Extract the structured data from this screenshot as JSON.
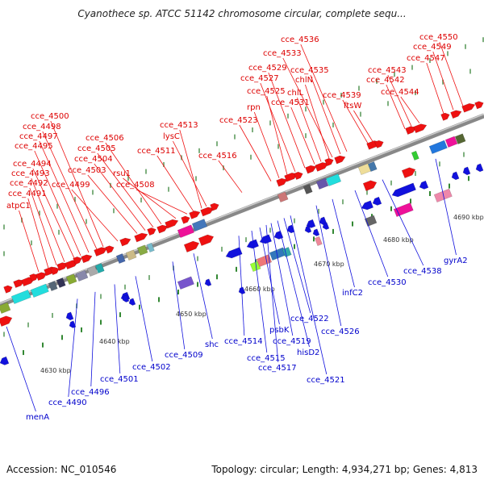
{
  "title": "Cyanothece sp. ATCC 51142 chromosome circular, complete sequ...",
  "footer": {
    "accession": "Accession: NC_010546",
    "topology": "Topology: circular; Length: 4,934,271 bp; Genes: 4,813"
  },
  "colors": {
    "forward_label": "#dd0000",
    "reverse_label": "#0000cc",
    "backbone": "#888888",
    "tick": "#338833"
  },
  "kbp_ticks": [
    "4630 kbp",
    "4640 kbp",
    "4650 kbp",
    "4660 kbp",
    "4670 kbp",
    "4680 kbp",
    "4690 kbp"
  ],
  "forward_labels": [
    "atpC1",
    "cce_4491",
    "cce_4492",
    "cce_4493",
    "cce_4494",
    "cce_4495",
    "cce_4497",
    "cce_4498",
    "cce_4500",
    "cce_4499",
    "cce_4503",
    "cce_4504",
    "cce_4505",
    "cce_4506",
    "rsu1",
    "cce_4508",
    "cce_4511",
    "cce_4513",
    "lysC",
    "cce_4516",
    "cce_4523",
    "rpn",
    "cce_4525",
    "cce_4527",
    "cce_4529",
    "cce_4531",
    "chlL",
    "chlN",
    "cce_4533",
    "cce_4535",
    "cce_4536",
    "cce_4539",
    "ftsW",
    "cce_4542",
    "cce_4543",
    "cce_4544",
    "cce_4547",
    "cce_4549",
    "cce_4550"
  ],
  "reverse_labels": [
    "menA",
    "cce_4490",
    "cce_4496",
    "cce_4501",
    "cce_4502",
    "cce_4509",
    "shc",
    "cce_4514",
    "cce_4515",
    "psbK",
    "cce_4517",
    "cce_4519",
    "hisD2",
    "cce_4522",
    "cce_4521",
    "cce_4526",
    "infC2",
    "cce_4530",
    "cce_4538",
    "gyrA2"
  ]
}
